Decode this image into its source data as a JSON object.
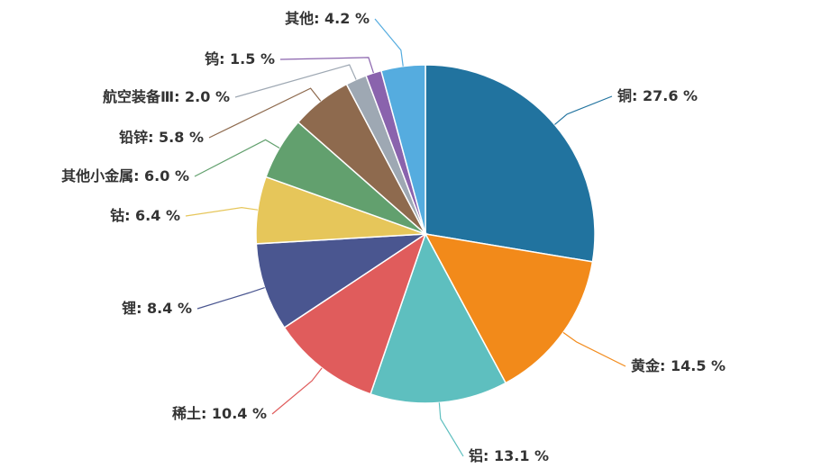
{
  "chart_data": {
    "type": "pie",
    "categories": [
      "铜",
      "黄金",
      "铝",
      "稀土",
      "锂",
      "钴",
      "其他小金属",
      "铅锌",
      "航空装备Ⅲ",
      "钨",
      "其他"
    ],
    "values": [
      27.6,
      14.5,
      13.1,
      10.4,
      8.4,
      6.4,
      6.0,
      5.8,
      2.0,
      1.5,
      4.2
    ],
    "value_labels": [
      "27.6 %",
      "14.5 %",
      "13.1 %",
      "10.4 %",
      "8.4 %",
      "6.4 %",
      "6.0 %",
      "5.8 %",
      "2.0 %",
      "1.5 %",
      "4.2 %"
    ],
    "label_separator": ": ",
    "colors": [
      "#21739f",
      "#f28a1a",
      "#5ebfbf",
      "#e05c5c",
      "#4a5690",
      "#e6c65a",
      "#62a06e",
      "#8e6a4e",
      "#9ea8b3",
      "#8a63ad",
      "#55acdf"
    ]
  }
}
